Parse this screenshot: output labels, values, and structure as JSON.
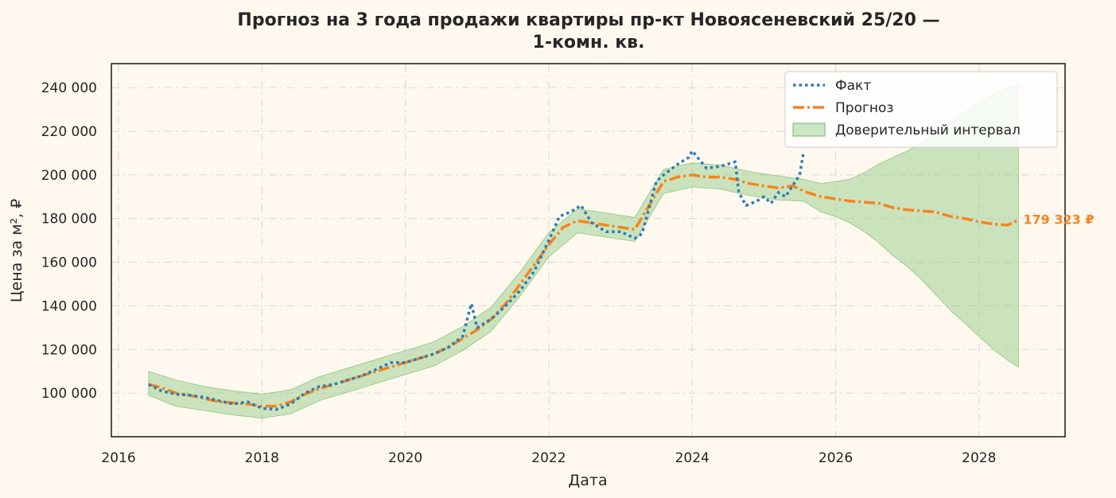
{
  "chart_data": {
    "type": "line",
    "title_lines": [
      "Прогноз на 3 года продажи квартиры  пр-кт Новоясеневский 25/20 —",
      "1-комн. кв."
    ],
    "xlabel": "Дата",
    "ylabel": "Цена за м², ₽",
    "x_ticks": [
      "2016",
      "2018",
      "2020",
      "2022",
      "2024",
      "2026",
      "2028"
    ],
    "y_ticks": [
      "100 000",
      "120 000",
      "140 000",
      "160 000",
      "180 000",
      "200 000",
      "220 000",
      "240 000"
    ],
    "xlim": [
      2015.9,
      2029.2
    ],
    "ylim": [
      80000,
      251000
    ],
    "grid": true,
    "legend_position": "top-right",
    "colors": {
      "fact": "#2b7bba",
      "forecast": "#f5841f",
      "band_fill": "#8cc97e",
      "band_edge": "#6fb664",
      "background": "#fff8ee",
      "grid": "#dcdcdc"
    },
    "series": [
      {
        "name": "Факт",
        "style": "dotted",
        "x": [
          2016.42,
          2016.6,
          2016.8,
          2017.0,
          2017.2,
          2017.4,
          2017.6,
          2017.8,
          2018.0,
          2018.2,
          2018.4,
          2018.6,
          2018.8,
          2019.0,
          2019.2,
          2019.4,
          2019.6,
          2019.8,
          2020.0,
          2020.2,
          2020.4,
          2020.6,
          2020.8,
          2020.92,
          2021.0,
          2021.2,
          2021.4,
          2021.6,
          2021.8,
          2022.0,
          2022.15,
          2022.3,
          2022.45,
          2022.6,
          2022.8,
          2023.0,
          2023.2,
          2023.3,
          2023.4,
          2023.5,
          2023.6,
          2023.8,
          2023.95,
          2024.0,
          2024.2,
          2024.4,
          2024.6,
          2024.65,
          2024.75,
          2024.9,
          2025.0,
          2025.1,
          2025.2,
          2025.3,
          2025.4,
          2025.5,
          2025.55
        ],
        "y": [
          104000,
          101000,
          99500,
          99000,
          98000,
          96500,
          95000,
          96000,
          93000,
          92500,
          95000,
          100000,
          103000,
          104000,
          106000,
          108000,
          111000,
          114000,
          114000,
          116000,
          118000,
          121000,
          126000,
          141000,
          130000,
          134000,
          140000,
          147000,
          156000,
          170000,
          181000,
          183000,
          186000,
          178000,
          174000,
          174000,
          171000,
          173000,
          185000,
          197000,
          200000,
          205000,
          208000,
          211000,
          203000,
          204000,
          206000,
          192000,
          186000,
          188000,
          190000,
          187000,
          192000,
          190000,
          195000,
          200000,
          210000
        ]
      },
      {
        "name": "Прогноз",
        "style": "dashdot",
        "x": [
          2016.42,
          2016.6,
          2016.8,
          2017.0,
          2017.2,
          2017.4,
          2017.6,
          2017.8,
          2018.0,
          2018.2,
          2018.4,
          2018.6,
          2018.8,
          2019.0,
          2019.2,
          2019.4,
          2019.6,
          2019.8,
          2020.0,
          2020.2,
          2020.4,
          2020.6,
          2020.8,
          2021.0,
          2021.2,
          2021.4,
          2021.6,
          2021.8,
          2022.0,
          2022.2,
          2022.4,
          2022.6,
          2022.8,
          2023.0,
          2023.2,
          2023.4,
          2023.6,
          2023.8,
          2024.0,
          2024.2,
          2024.4,
          2024.6,
          2024.8,
          2025.0,
          2025.2,
          2025.4,
          2025.6,
          2025.8,
          2026.0,
          2026.2,
          2026.4,
          2026.6,
          2026.8,
          2027.0,
          2027.2,
          2027.4,
          2027.6,
          2027.8,
          2028.0,
          2028.2,
          2028.4,
          2028.55
        ],
        "y": [
          104000,
          102500,
          100000,
          99000,
          97500,
          96000,
          95500,
          95000,
          94000,
          94000,
          96000,
          99500,
          102000,
          104000,
          106000,
          108000,
          110000,
          112000,
          114000,
          116000,
          118000,
          121000,
          125000,
          129000,
          134000,
          141000,
          150000,
          159000,
          168000,
          176000,
          179000,
          178000,
          177000,
          176000,
          175000,
          186000,
          197000,
          199000,
          200000,
          199000,
          199000,
          198000,
          196000,
          195000,
          194000,
          195000,
          192000,
          190000,
          189000,
          188000,
          187500,
          187000,
          185000,
          184000,
          183500,
          183000,
          181000,
          180000,
          178500,
          177500,
          177000,
          179323
        ]
      }
    ],
    "confidence_interval": {
      "name": "Доверительный интервал",
      "x": [
        2016.42,
        2016.8,
        2017.2,
        2017.6,
        2018.0,
        2018.4,
        2018.8,
        2019.2,
        2019.6,
        2020.0,
        2020.4,
        2020.8,
        2021.2,
        2021.6,
        2022.0,
        2022.4,
        2022.8,
        2023.2,
        2023.6,
        2024.0,
        2024.4,
        2024.8,
        2025.2,
        2025.55,
        2025.8,
        2026.0,
        2026.2,
        2026.4,
        2026.6,
        2026.8,
        2027.0,
        2027.2,
        2027.4,
        2027.6,
        2027.8,
        2028.0,
        2028.2,
        2028.4,
        2028.55
      ],
      "lower": [
        99000,
        94000,
        92000,
        90000,
        88500,
        90500,
        96500,
        100500,
        104500,
        108500,
        112500,
        119500,
        128500,
        144500,
        162500,
        173500,
        171500,
        169500,
        191500,
        194500,
        193500,
        190500,
        188500,
        188000,
        183000,
        181000,
        178000,
        174000,
        169000,
        163000,
        158000,
        152000,
        145000,
        138000,
        132000,
        126000,
        120000,
        115000,
        112000
      ],
      "upper": [
        110000,
        106000,
        103000,
        101000,
        99500,
        101500,
        107500,
        111500,
        115500,
        119500,
        123500,
        130500,
        139500,
        155500,
        173500,
        184500,
        182500,
        180500,
        202500,
        205500,
        204500,
        201500,
        199500,
        198000,
        196000,
        197000,
        198000,
        201000,
        205000,
        208000,
        211000,
        215000,
        219000,
        224000,
        229000,
        233000,
        237000,
        240000,
        242000
      ]
    },
    "end_annotation": "179 323 ₽"
  }
}
